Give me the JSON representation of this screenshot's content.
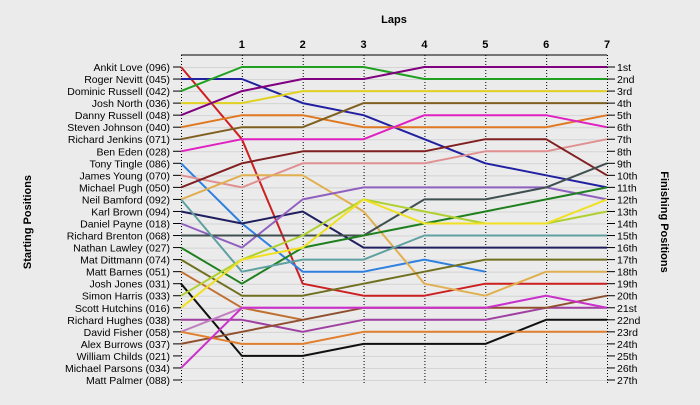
{
  "chart_data": {
    "type": "line",
    "title": "Laps",
    "ylabel_left": "Starting Positions",
    "ylabel_right": "Finishing Positions",
    "x": [
      0,
      1,
      2,
      3,
      4,
      5,
      6,
      7
    ],
    "xticks": [
      "1",
      "2",
      "3",
      "4",
      "5",
      "6",
      "7"
    ],
    "xlim": [
      0,
      7
    ],
    "ylim": [
      1,
      27
    ],
    "grid": true,
    "left_labels": [
      "Ankit Love (096)",
      "Roger Nevitt (045)",
      "Dominic Russell (042)",
      "Josh North (036)",
      "Danny Russell (048)",
      "Steven Johnson (040)",
      "Richard Jenkins (071)",
      "Ben Eden (028)",
      "Tony Tingle (086)",
      "James Young (070)",
      "Michael Pugh (050)",
      "Neil Bamford (092)",
      "Karl Brown (094)",
      "Daniel Payne (018)",
      "Richard Brenton (068)",
      "Nathan Lawley (027)",
      "Mat Dittmann (074)",
      "Matt Barnes (051)",
      "Josh Jones (031)",
      "Simon Harris (033)",
      "Scott Hutchins (016)",
      "Richard Hughes (038)",
      "David Fisher (058)",
      "Alex Burrows (037)",
      "William Childs (021)",
      "Michael Parsons (034)",
      "Matt Palmer (088)"
    ],
    "right_labels": [
      "1st",
      "2nd",
      "3rd",
      "4th",
      "5th",
      "6th",
      "7th",
      "8th",
      "9th",
      "10th",
      "11th",
      "12th",
      "13th",
      "14th",
      "15th",
      "16th",
      "17th",
      "18th",
      "19th",
      "20th",
      "21st",
      "22nd",
      "23rd",
      "24th",
      "25th",
      "26th",
      "27th"
    ],
    "series": [
      {
        "color": "#cc2020",
        "values": [
          1,
          7,
          19,
          20,
          20,
          19,
          19,
          19
        ]
      },
      {
        "color": "#2020a0",
        "values": [
          2,
          2,
          4,
          5,
          7,
          9,
          10,
          11
        ]
      },
      {
        "color": "#20a020",
        "values": [
          3,
          1,
          1,
          1,
          2,
          2,
          2,
          2
        ]
      },
      {
        "color": "#e0d020",
        "values": [
          4,
          4,
          3,
          3,
          3,
          3,
          3,
          3
        ]
      },
      {
        "color": "#800080",
        "values": [
          5,
          3,
          2,
          2,
          1,
          1,
          1,
          1
        ]
      },
      {
        "color": "#e07820",
        "values": [
          6,
          5,
          5,
          6,
          6,
          6,
          6,
          5
        ]
      },
      {
        "color": "#806020",
        "values": [
          7,
          6,
          6,
          4,
          4,
          4,
          4,
          4
        ]
      },
      {
        "color": "#e020c0",
        "values": [
          8,
          7,
          7,
          7,
          5,
          5,
          5,
          6
        ]
      },
      {
        "color": "#3080e0",
        "values": [
          9,
          14,
          18,
          18,
          17,
          18,
          null,
          null
        ]
      },
      {
        "color": "#e09090",
        "values": [
          10,
          11,
          9,
          9,
          9,
          8,
          8,
          7
        ]
      },
      {
        "color": "#802020",
        "values": [
          11,
          9,
          8,
          8,
          8,
          7,
          7,
          10
        ]
      },
      {
        "color": "#e0b050",
        "values": [
          12,
          10,
          10,
          13,
          19,
          20,
          18,
          18
        ]
      },
      {
        "color": "#202060",
        "values": [
          13,
          14,
          13,
          16,
          16,
          16,
          16,
          16
        ]
      },
      {
        "color": "#9060c0",
        "values": [
          14,
          16,
          12,
          11,
          11,
          11,
          11,
          12
        ]
      },
      {
        "color": "#405050",
        "values": [
          15,
          15,
          15,
          15,
          12,
          12,
          11,
          9
        ]
      },
      {
        "color": "#208020",
        "values": [
          16,
          19,
          16,
          15,
          14,
          13,
          12,
          11
        ]
      },
      {
        "color": "#707020",
        "values": [
          17,
          20,
          20,
          19,
          18,
          17,
          17,
          17
        ]
      },
      {
        "color": "#60a0a0",
        "values": [
          12,
          18,
          17,
          17,
          15,
          15,
          15,
          15
        ]
      },
      {
        "color": "#c07030",
        "values": [
          18,
          21,
          22,
          null,
          null,
          null,
          null,
          null
        ]
      },
      {
        "color": "#101010",
        "values": [
          19,
          25,
          25,
          24,
          24,
          24,
          22,
          22
        ]
      },
      {
        "color": "#b0d030",
        "values": [
          20,
          17,
          15,
          12,
          13,
          14,
          14,
          13
        ]
      },
      {
        "color": "#a040a0",
        "values": [
          22,
          22,
          23,
          22,
          22,
          22,
          21,
          21
        ]
      },
      {
        "color": "#c080c0",
        "values": [
          23,
          21,
          21,
          21,
          21,
          21,
          20,
          21
        ]
      },
      {
        "color": "#905030",
        "values": [
          24,
          23,
          22,
          21,
          21,
          21,
          21,
          20
        ]
      },
      {
        "color": "#e08030",
        "values": [
          23,
          24,
          24,
          23,
          23,
          23,
          23,
          23
        ]
      },
      {
        "color": "#cc30cc",
        "values": [
          26,
          21,
          21,
          21,
          21,
          21,
          20,
          21
        ]
      },
      {
        "color": "#f0e020",
        "values": [
          21,
          17,
          16,
          12,
          14,
          14,
          14,
          12
        ]
      }
    ]
  }
}
